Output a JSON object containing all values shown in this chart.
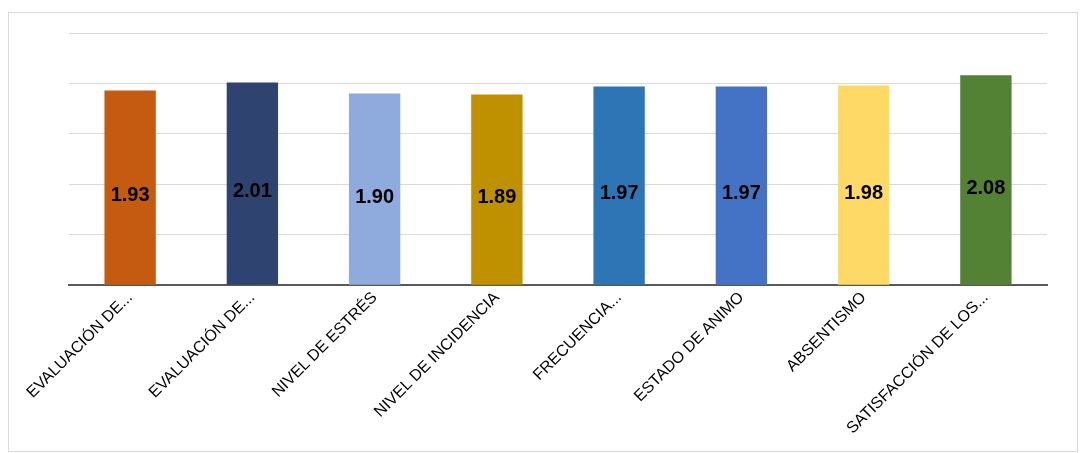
{
  "chart_data": {
    "type": "bar",
    "categories": [
      "EVALUACIÓN DE...",
      "EVALUACIÓN DE...",
      "NIVEL DE ESTRÉS",
      "NIVEL DE INCIDENCIA",
      "FRECUENCIA...",
      "ESTADO DE ANIMO",
      "ABSENTISMO",
      "SATISFACCIÓN DE LOS..."
    ],
    "values": [
      1.93,
      2.01,
      1.9,
      1.89,
      1.97,
      1.97,
      1.98,
      2.08
    ],
    "colors": [
      "#c55a11",
      "#2e4370",
      "#8faadc",
      "#bf9000",
      "#2e75b6",
      "#4472c4",
      "#ffd966",
      "#548235"
    ],
    "value_labels": [
      "1.93",
      "2.01",
      "1.90",
      "1.89",
      "1.97",
      "1.97",
      "1.98",
      "2.08"
    ],
    "tick_labels": "x",
    "grid": "y"
  }
}
